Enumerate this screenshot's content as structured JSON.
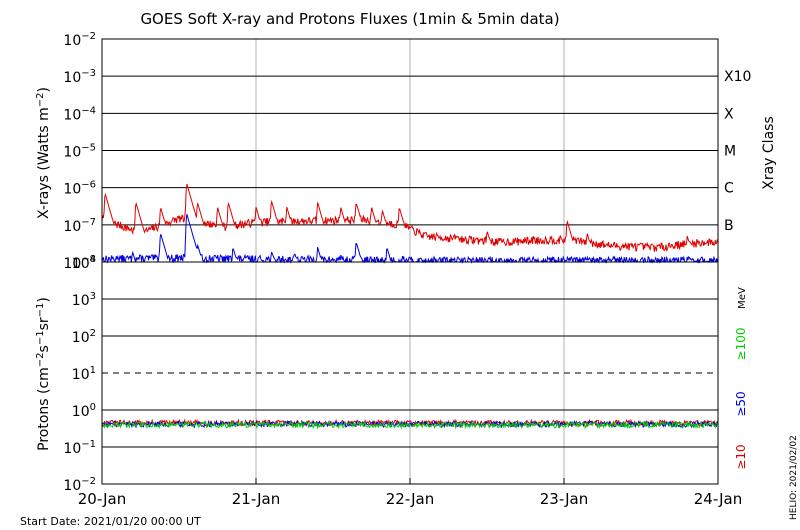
{
  "chart_data": [
    {
      "type": "line",
      "title": "GOES Soft X-ray and Protons Fluxes   (1min & 5min data)",
      "ylabel_main": "X-rays (Watts m",
      "ylabel_exp": "−2",
      "ylabel_close": ")",
      "yscale": "log",
      "ylim": [
        1e-08,
        0.01
      ],
      "y_ticks": [
        {
          "base": "10",
          "exp": "−2"
        },
        {
          "base": "10",
          "exp": "−3"
        },
        {
          "base": "10",
          "exp": "−4"
        },
        {
          "base": "10",
          "exp": "−5"
        },
        {
          "base": "10",
          "exp": "−6"
        },
        {
          "base": "10",
          "exp": "−7"
        },
        {
          "base": "10",
          "exp": "−8"
        }
      ],
      "right_axis_label": "Xray Class",
      "classes": [
        "X10",
        "X",
        "M",
        "C",
        "B"
      ],
      "series": [
        {
          "color": "#e00000",
          "baseline": [
            [
              0,
              1.5e-07
            ],
            [
              0.25,
              6e-08
            ],
            [
              0.5,
              1.5e-07
            ],
            [
              0.8,
              9e-08
            ],
            [
              1.0,
              1.2e-07
            ],
            [
              1.4,
              1.3e-07
            ],
            [
              1.7,
              1.4e-07
            ],
            [
              1.95,
              1e-07
            ],
            [
              2.1,
              5e-08
            ],
            [
              2.4,
              4e-08
            ],
            [
              2.6,
              3.5e-08
            ],
            [
              2.9,
              4e-08
            ],
            [
              3.05,
              4e-08
            ],
            [
              3.3,
              2.8e-08
            ],
            [
              3.6,
              2.5e-08
            ],
            [
              3.8,
              3.2e-08
            ],
            [
              4.0,
              3.5e-08
            ]
          ],
          "peaks": [
            [
              0.02,
              7e-07
            ],
            [
              0.22,
              4e-07
            ],
            [
              0.38,
              3e-07
            ],
            [
              0.55,
              1.3e-06
            ],
            [
              0.62,
              4e-07
            ],
            [
              0.75,
              3e-07
            ],
            [
              0.82,
              4e-07
            ],
            [
              1.0,
              3e-07
            ],
            [
              1.1,
              4.5e-07
            ],
            [
              1.2,
              3e-07
            ],
            [
              1.4,
              4e-07
            ],
            [
              1.55,
              3e-07
            ],
            [
              1.65,
              4e-07
            ],
            [
              1.75,
              3e-07
            ],
            [
              1.82,
              2.5e-07
            ],
            [
              1.93,
              3e-07
            ],
            [
              2.3,
              5e-08
            ],
            [
              2.5,
              7e-08
            ],
            [
              2.8,
              5e-08
            ],
            [
              3.02,
              1.3e-07
            ],
            [
              3.15,
              6e-08
            ],
            [
              3.8,
              5e-08
            ]
          ]
        },
        {
          "color": "#0000e0",
          "baseline": [
            [
              0,
              1.2e-08
            ],
            [
              0.5,
              1.3e-08
            ],
            [
              1.0,
              1.2e-08
            ],
            [
              2.0,
              1.1e-08
            ],
            [
              3.0,
              1.1e-08
            ],
            [
              4.0,
              1.1e-08
            ]
          ],
          "peaks": [
            [
              0.1,
              1.5e-08
            ],
            [
              0.2,
              1.8e-08
            ],
            [
              0.38,
              6e-08
            ],
            [
              0.55,
              2e-07
            ],
            [
              0.62,
              3e-08
            ],
            [
              0.85,
              2.5e-08
            ],
            [
              1.1,
              2e-08
            ],
            [
              1.25,
              1.8e-08
            ],
            [
              1.4,
              2.5e-08
            ],
            [
              1.55,
              1.6e-08
            ],
            [
              1.65,
              3.5e-08
            ],
            [
              1.85,
              2.5e-08
            ],
            [
              1.95,
              1.5e-08
            ],
            [
              3.05,
              1.3e-08
            ]
          ]
        }
      ]
    },
    {
      "type": "line",
      "ylabel_main": "Protons (cm",
      "ylabel_e1": "−2",
      "ylabel_mid1": "s",
      "ylabel_e2": "−1",
      "ylabel_mid2": "sr",
      "ylabel_e3": "−1",
      "ylabel_close": ")",
      "yscale": "log",
      "ylim": [
        0.01,
        10000
      ],
      "y_ticks": [
        {
          "base": "10",
          "exp": "4"
        },
        {
          "base": "10",
          "exp": "3"
        },
        {
          "base": "10",
          "exp": "2"
        },
        {
          "base": "10",
          "exp": "1"
        },
        {
          "base": "10",
          "exp": "0"
        },
        {
          "base": "10",
          "exp": "−1"
        },
        {
          "base": "10",
          "exp": "−2"
        }
      ],
      "threshold": 10,
      "energy_unit": "MeV",
      "legend": [
        {
          "name": "≥100",
          "color": "#00cc00"
        },
        {
          "name": "≥50",
          "color": "#0000e0"
        },
        {
          "name": "≥10",
          "color": "#e00000"
        }
      ],
      "series": [
        {
          "name": "≥10",
          "color": "#e00000",
          "level": 0.45
        },
        {
          "name": "≥50",
          "color": "#0000e0",
          "level": 0.42
        },
        {
          "name": "≥100",
          "color": "#00cc00",
          "level": 0.4
        }
      ]
    }
  ],
  "x_axis": {
    "days": 4,
    "tick_labels": [
      "20-Jan",
      "21-Jan",
      "22-Jan",
      "23-Jan",
      "24-Jan"
    ]
  },
  "start_date": "Start Date: 2021/01/20 00:00 UT",
  "credit": "HELIO: 2021/02/02"
}
